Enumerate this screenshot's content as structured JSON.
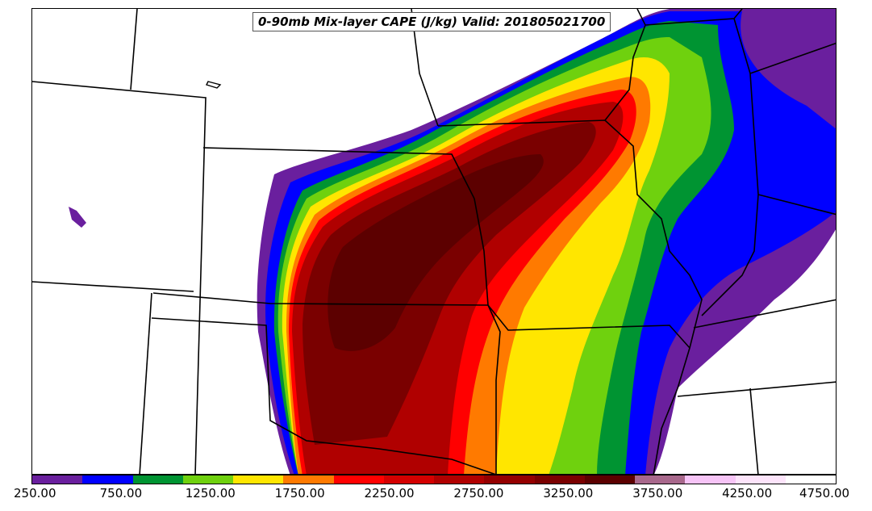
{
  "title": "0-90mb Mix-layer CAPE (J/kg) Valid: 201805021700",
  "colorbar": {
    "colors": [
      "#6a1f9e",
      "#0000ff",
      "#009432",
      "#6fd10e",
      "#ffe600",
      "#ff7a00",
      "#ff0000",
      "#d40000",
      "#b00000",
      "#940000",
      "#7a0000",
      "#5c0000",
      "#a8688c",
      "#f7c4f7",
      "#fde4fb",
      "#ffffff"
    ],
    "tick_labels": [
      "250.00",
      "750.00",
      "1250.00",
      "1750.00",
      "2250.00",
      "2750.00",
      "3250.00",
      "3750.00",
      "4250.00",
      "4750.00"
    ]
  },
  "legend_fill": {
    "purple": "#6a1f9e",
    "blue": "#0000ff",
    "dark_green": "#009432",
    "light_green": "#6fd10e",
    "yellow": "#ffe600",
    "orange": "#ff7a00",
    "red": "#ff0000",
    "dark_red": "#b00000",
    "maroon": "#7a0000",
    "dark_maroon": "#5c0000"
  }
}
